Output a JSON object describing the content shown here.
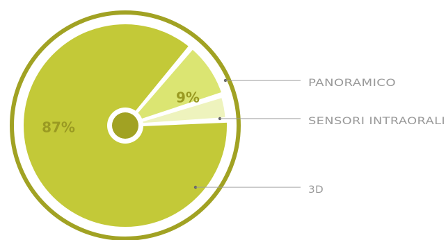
{
  "chart_data": {
    "type": "pie",
    "slices": [
      {
        "label": "PANORAMICO",
        "value": 9,
        "value_label": "9%",
        "color": "#dbe572"
      },
      {
        "label": "SENSORI INTRAORALI",
        "value": 4,
        "value_label": "",
        "color": "#eef3bd"
      },
      {
        "label": "3D",
        "value": 87,
        "value_label": "87%",
        "color": "#c3c938"
      }
    ],
    "colors": {
      "outer_ring": "#a1a223",
      "center_dot": "#a1a223",
      "percent_text": "#9a9a22",
      "leader_line": "#9a9a9a",
      "legend_text": "#9a9a9a"
    }
  }
}
